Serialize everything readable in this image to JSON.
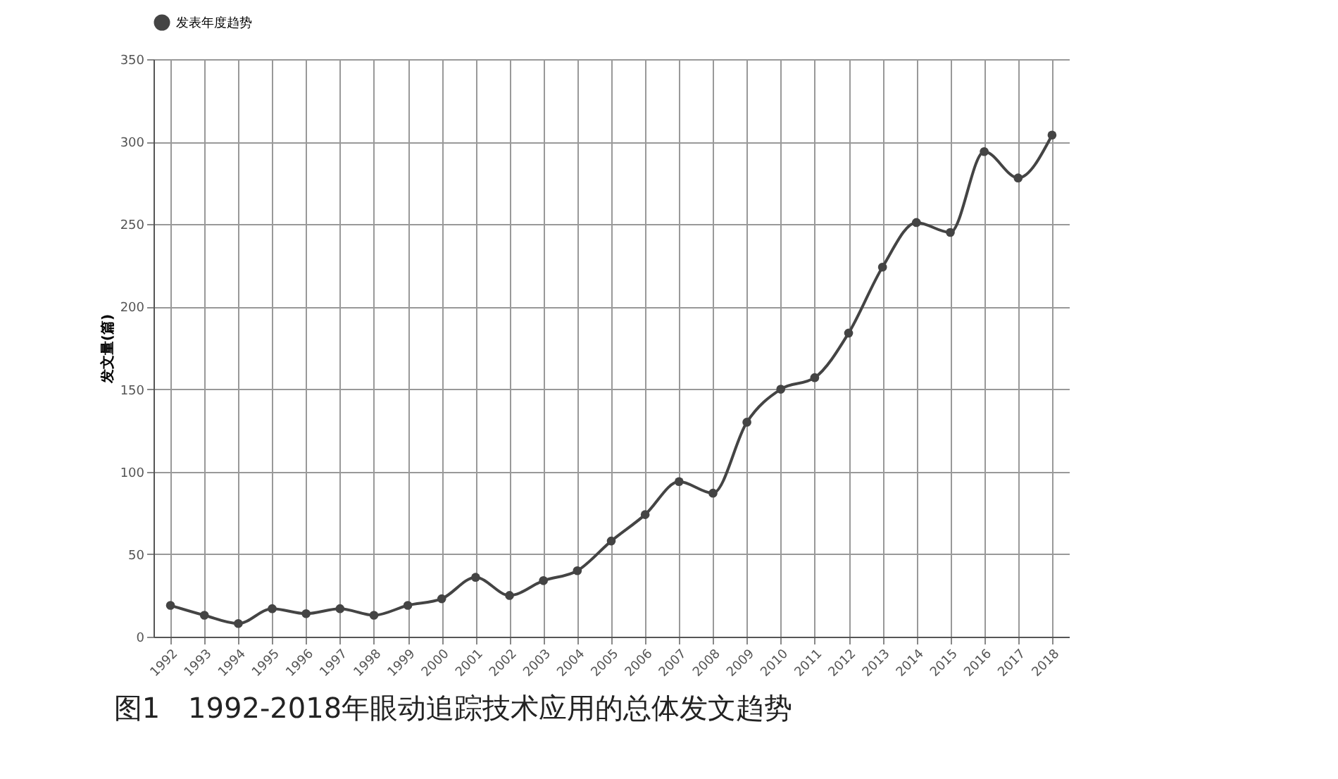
{
  "chart_data": {
    "type": "line",
    "xlabel": null,
    "ylabel": "发文量(篇)",
    "categories": [
      "1992",
      "1993",
      "1994",
      "1995",
      "1996",
      "1997",
      "1998",
      "1999",
      "2000",
      "2001",
      "2002",
      "2003",
      "2004",
      "2005",
      "2006",
      "2007",
      "2008",
      "2009",
      "2010",
      "2011",
      "2012",
      "2013",
      "2014",
      "2015",
      "2016",
      "2017",
      "2018"
    ],
    "series": [
      {
        "name": "发表年度趋势",
        "color": "#444444",
        "values": [
          19,
          13,
          8,
          17,
          14,
          17,
          13,
          19,
          23,
          36,
          25,
          34,
          40,
          58,
          74,
          94,
          87,
          130,
          150,
          157,
          184,
          224,
          251,
          245,
          294,
          278,
          304
        ]
      }
    ],
    "ylim": [
      0,
      350
    ],
    "yticks": [
      0,
      50,
      100,
      150,
      200,
      250,
      300,
      350
    ],
    "grid": true,
    "legend": "top",
    "marker": "circle",
    "line_style": "solid",
    "annotations": [
      "图1　1992-2018年眼动追踪技术应用的总体发文趋势"
    ]
  }
}
